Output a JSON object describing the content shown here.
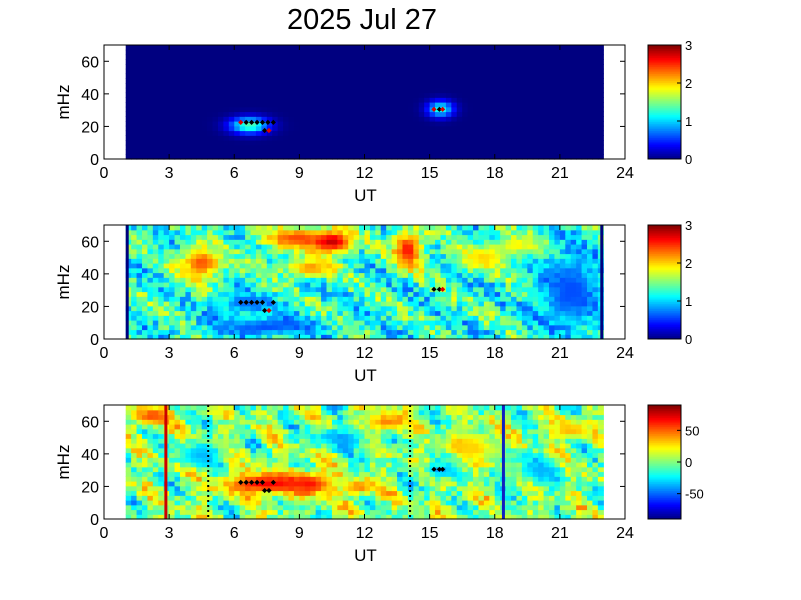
{
  "title": "2025 Jul 27",
  "chart_data": [
    {
      "type": "heatmap",
      "xlabel": "UT",
      "ylabel": "mHz",
      "xlim": [
        0,
        24
      ],
      "ylim": [
        0,
        70
      ],
      "xticks": [
        "0",
        "3",
        "6",
        "9",
        "12",
        "15",
        "18",
        "21",
        "24"
      ],
      "yticks": [
        "0",
        "20",
        "40",
        "60"
      ],
      "data_x_range": [
        1,
        23
      ],
      "colorbar": {
        "range": [
          0,
          3
        ],
        "ticks": [
          "0",
          "1",
          "2",
          "3"
        ]
      },
      "background_level": 0,
      "blobs": [
        {
          "x": 6.7,
          "y": 21,
          "rx": 0.9,
          "ry": 5,
          "value": 1.4
        },
        {
          "x": 15.5,
          "y": 31,
          "rx": 0.6,
          "ry": 5,
          "value": 1.2
        }
      ],
      "markers": [
        {
          "x": 6.3,
          "y": 22.5,
          "color": "red"
        },
        {
          "x": 6.55,
          "y": 22.5,
          "color": "black"
        },
        {
          "x": 6.8,
          "y": 22.5,
          "color": "black"
        },
        {
          "x": 7.05,
          "y": 22.5,
          "color": "black"
        },
        {
          "x": 7.3,
          "y": 22.5,
          "color": "black"
        },
        {
          "x": 7.55,
          "y": 22.5,
          "color": "black"
        },
        {
          "x": 7.8,
          "y": 22.5,
          "color": "black"
        },
        {
          "x": 7.4,
          "y": 17.5,
          "color": "black"
        },
        {
          "x": 7.6,
          "y": 17.5,
          "color": "red"
        },
        {
          "x": 15.2,
          "y": 30.5,
          "color": "red"
        },
        {
          "x": 15.45,
          "y": 30.5,
          "color": "black"
        },
        {
          "x": 15.6,
          "y": 30.5,
          "color": "red"
        }
      ]
    },
    {
      "type": "heatmap",
      "xlabel": "UT",
      "ylabel": "mHz",
      "xlim": [
        0,
        24
      ],
      "ylim": [
        0,
        70
      ],
      "xticks": [
        "0",
        "3",
        "6",
        "9",
        "12",
        "15",
        "18",
        "21",
        "24"
      ],
      "yticks": [
        "0",
        "20",
        "40",
        "60"
      ],
      "data_x_range": [
        1,
        23
      ],
      "colorbar": {
        "range": [
          0,
          3
        ],
        "ticks": [
          "0",
          "1",
          "2",
          "3"
        ]
      },
      "background_level": 1.25,
      "blobs": [
        {
          "x": 4.5,
          "y": 47,
          "rx": 1.0,
          "ry": 10,
          "value": 2.4
        },
        {
          "x": 8.8,
          "y": 62,
          "rx": 1.6,
          "ry": 7,
          "value": 2.4
        },
        {
          "x": 10.5,
          "y": 60,
          "rx": 1.0,
          "ry": 7,
          "value": 2.8
        },
        {
          "x": 9.5,
          "y": 44,
          "rx": 1.2,
          "ry": 6,
          "value": 2.2
        },
        {
          "x": 14.0,
          "y": 55,
          "rx": 0.7,
          "ry": 12,
          "value": 2.6
        },
        {
          "x": 17.5,
          "y": 50,
          "rx": 1.2,
          "ry": 8,
          "value": 2.0
        },
        {
          "x": 6.5,
          "y": 22,
          "rx": 1.3,
          "ry": 6,
          "value": 0.7
        },
        {
          "x": 7.5,
          "y": 8,
          "rx": 2.5,
          "ry": 6,
          "value": 0.6
        },
        {
          "x": 21.5,
          "y": 30,
          "rx": 1.5,
          "ry": 25,
          "value": 0.6
        },
        {
          "x": 19.0,
          "y": 58,
          "rx": 1.0,
          "ry": 6,
          "value": 1.9
        }
      ],
      "markers": [
        {
          "x": 6.3,
          "y": 22.5,
          "color": "black"
        },
        {
          "x": 6.55,
          "y": 22.5,
          "color": "black"
        },
        {
          "x": 6.8,
          "y": 22.5,
          "color": "black"
        },
        {
          "x": 7.05,
          "y": 22.5,
          "color": "black"
        },
        {
          "x": 7.3,
          "y": 22.5,
          "color": "black"
        },
        {
          "x": 7.8,
          "y": 22.5,
          "color": "black"
        },
        {
          "x": 7.4,
          "y": 17.5,
          "color": "black"
        },
        {
          "x": 7.6,
          "y": 17.5,
          "color": "red"
        },
        {
          "x": 15.2,
          "y": 30.5,
          "color": "black"
        },
        {
          "x": 15.45,
          "y": 30.5,
          "color": "black"
        },
        {
          "x": 15.6,
          "y": 30.5,
          "color": "red"
        }
      ]
    },
    {
      "type": "heatmap",
      "xlabel": "UT",
      "ylabel": "mHz",
      "xlim": [
        0,
        24
      ],
      "ylim": [
        0,
        70
      ],
      "xticks": [
        "0",
        "3",
        "6",
        "9",
        "12",
        "15",
        "18",
        "21",
        "24"
      ],
      "yticks": [
        "0",
        "20",
        "40",
        "60"
      ],
      "data_x_range": [
        1,
        23
      ],
      "colorbar": {
        "range": [
          -90,
          90
        ],
        "ticks": [
          "50",
          "0",
          "-50"
        ],
        "tick_values": [
          50,
          0,
          -50
        ]
      },
      "background_level": 0,
      "blobs": [
        {
          "x": 7.5,
          "y": 22,
          "rx": 2.0,
          "ry": 7,
          "value": 70
        },
        {
          "x": 9.5,
          "y": 22,
          "rx": 1.0,
          "ry": 7,
          "value": 65
        },
        {
          "x": 11.8,
          "y": 20,
          "rx": 0.8,
          "ry": 5,
          "value": 45
        },
        {
          "x": 2.2,
          "y": 64,
          "rx": 0.8,
          "ry": 6,
          "value": 55
        },
        {
          "x": 15.5,
          "y": 30,
          "rx": 0.7,
          "ry": 5,
          "value": -40
        },
        {
          "x": 17.0,
          "y": 45,
          "rx": 1.2,
          "ry": 10,
          "value": 30
        },
        {
          "x": 4.5,
          "y": 40,
          "rx": 1.0,
          "ry": 8,
          "value": -35
        },
        {
          "x": 11.0,
          "y": 50,
          "rx": 1.2,
          "ry": 6,
          "value": -40
        },
        {
          "x": 13.0,
          "y": 60,
          "rx": 1.0,
          "ry": 6,
          "value": 45
        },
        {
          "x": 20.0,
          "y": 30,
          "rx": 1.0,
          "ry": 8,
          "value": -35
        },
        {
          "x": 21.5,
          "y": 55,
          "rx": 1.0,
          "ry": 6,
          "value": 35
        }
      ],
      "vlines": [
        {
          "x": 2.85,
          "color": "#cc0000",
          "style": "solid"
        },
        {
          "x": 4.8,
          "color": "#000000",
          "style": "dotted"
        },
        {
          "x": 14.1,
          "color": "#000000",
          "style": "dotted"
        },
        {
          "x": 18.4,
          "color": "#1020c0",
          "style": "solid"
        }
      ],
      "markers": [
        {
          "x": 6.3,
          "y": 22.5,
          "color": "black"
        },
        {
          "x": 6.55,
          "y": 22.5,
          "color": "black"
        },
        {
          "x": 6.8,
          "y": 22.5,
          "color": "black"
        },
        {
          "x": 7.05,
          "y": 22.5,
          "color": "black"
        },
        {
          "x": 7.3,
          "y": 22.5,
          "color": "black"
        },
        {
          "x": 7.8,
          "y": 22.5,
          "color": "black"
        },
        {
          "x": 7.4,
          "y": 17.5,
          "color": "black"
        },
        {
          "x": 7.6,
          "y": 17.5,
          "color": "black"
        },
        {
          "x": 15.2,
          "y": 30.5,
          "color": "black"
        },
        {
          "x": 15.45,
          "y": 30.5,
          "color": "black"
        },
        {
          "x": 15.6,
          "y": 30.5,
          "color": "black"
        }
      ]
    }
  ]
}
